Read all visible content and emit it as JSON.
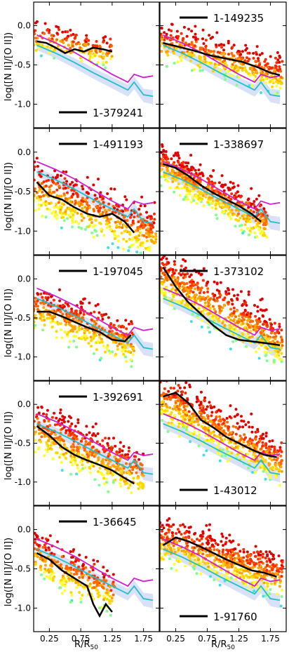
{
  "figure": {
    "ylabel": "log([N II]/[O II])",
    "xlabel": "R/R",
    "xlabel_sub": "50"
  },
  "colors": {
    "magenta_model": "#d020d0",
    "cyan_model": "#20c0c8",
    "band_fill": "#b8c8f0",
    "median_line": "#000000",
    "points": [
      "#e00000",
      "#ff2a00",
      "#ff6a00",
      "#ffa500",
      "#ffd700",
      "#ffff30",
      "#80ff90",
      "#40e0e0"
    ]
  },
  "chart_data": [
    {
      "type": "scatter",
      "label": "1-379241",
      "legend_pos": "bottom",
      "xlim": [
        0,
        2.0
      ],
      "ylim": [
        -1.3,
        0.3
      ],
      "yticks": [
        0.0,
        -0.5,
        -1.0
      ],
      "xticks": [
        0.25,
        0.75,
        1.25,
        1.75
      ],
      "median_x": [
        0.05,
        0.2,
        0.35,
        0.5,
        0.65,
        0.8,
        0.95,
        1.1,
        1.25
      ],
      "median_y": [
        -0.2,
        -0.22,
        -0.28,
        -0.35,
        -0.3,
        -0.33,
        -0.28,
        -0.3,
        -0.33
      ],
      "cloud": {
        "n": 180,
        "x0": 0.0,
        "x1": 1.25,
        "y0": -0.15,
        "slope": -0.15,
        "spread": 0.12
      }
    },
    {
      "type": "scatter",
      "label": "1-149235",
      "legend_pos": "top",
      "xlim": [
        0,
        2.0
      ],
      "ylim": [
        -1.3,
        0.3
      ],
      "yticks": [
        0.0,
        -0.5,
        -1.0
      ],
      "xticks": [
        0.25,
        0.75,
        1.25,
        1.75
      ],
      "median_x": [
        0.05,
        0.3,
        0.55,
        0.8,
        1.05,
        1.3,
        1.55,
        1.75,
        1.9
      ],
      "median_y": [
        -0.22,
        -0.27,
        -0.32,
        -0.38,
        -0.42,
        -0.46,
        -0.53,
        -0.6,
        -0.63
      ],
      "cloud": {
        "n": 420,
        "x0": 0.0,
        "x1": 1.95,
        "y0": -0.2,
        "slope": -0.22,
        "spread": 0.15
      }
    },
    {
      "type": "scatter",
      "label": "1-491193",
      "legend_pos": "top",
      "xlim": [
        0,
        2.0
      ],
      "ylim": [
        -1.3,
        0.3
      ],
      "yticks": [
        0.0,
        -0.5,
        -1.0
      ],
      "xticks": [
        0.25,
        0.75,
        1.25,
        1.75
      ],
      "median_x": [
        0.05,
        0.25,
        0.45,
        0.65,
        0.85,
        1.05,
        1.25,
        1.45,
        1.6
      ],
      "median_y": [
        -0.38,
        -0.55,
        -0.6,
        -0.7,
        -0.78,
        -0.82,
        -0.78,
        -0.88,
        -1.02
      ],
      "cloud": {
        "n": 520,
        "x0": 0.0,
        "x1": 1.95,
        "y0": -0.45,
        "slope": -0.3,
        "spread": 0.2
      }
    },
    {
      "type": "scatter",
      "label": "1-338697",
      "legend_pos": "top",
      "xlim": [
        0,
        2.0
      ],
      "ylim": [
        -1.3,
        0.3
      ],
      "yticks": [
        0.0,
        -0.5,
        -1.0
      ],
      "xticks": [
        0.25,
        0.75,
        1.25,
        1.75
      ],
      "median_x": [
        0.05,
        0.25,
        0.45,
        0.65,
        0.85,
        1.05,
        1.25,
        1.45,
        1.6
      ],
      "median_y": [
        -0.15,
        -0.2,
        -0.3,
        -0.42,
        -0.52,
        -0.6,
        -0.68,
        -0.78,
        -0.88
      ],
      "cloud": {
        "n": 560,
        "x0": 0.0,
        "x1": 1.7,
        "y0": -0.15,
        "slope": -0.45,
        "spread": 0.15
      }
    },
    {
      "type": "scatter",
      "label": "1-197045",
      "legend_pos": "top",
      "xlim": [
        0,
        2.0
      ],
      "ylim": [
        -1.3,
        0.3
      ],
      "yticks": [
        0.0,
        -0.5,
        -1.0
      ],
      "xticks": [
        0.25,
        0.75,
        1.25,
        1.75
      ],
      "median_x": [
        0.05,
        0.25,
        0.45,
        0.65,
        0.85,
        1.05,
        1.25,
        1.45,
        1.55
      ],
      "median_y": [
        -0.42,
        -0.42,
        -0.48,
        -0.55,
        -0.62,
        -0.68,
        -0.78,
        -0.8,
        -0.72
      ],
      "cloud": {
        "n": 400,
        "x0": 0.0,
        "x1": 1.6,
        "y0": -0.35,
        "slope": -0.3,
        "spread": 0.18
      }
    },
    {
      "type": "scatter",
      "label": "1-373102",
      "legend_pos": "top",
      "xlim": [
        0,
        2.0
      ],
      "ylim": [
        -1.3,
        0.3
      ],
      "yticks": [
        0.0,
        -0.5,
        -1.0
      ],
      "xticks": [
        0.25,
        0.75,
        1.25,
        1.75
      ],
      "median_x": [
        0.05,
        0.25,
        0.45,
        0.65,
        0.85,
        1.05,
        1.25,
        1.45,
        1.65,
        1.9
      ],
      "median_y": [
        0.15,
        -0.1,
        -0.3,
        -0.45,
        -0.6,
        -0.72,
        -0.78,
        -0.8,
        -0.82,
        -0.85
      ],
      "cloud": {
        "n": 620,
        "x0": 0.0,
        "x1": 1.95,
        "y0": 0.05,
        "slope": -0.45,
        "spread": 0.2
      }
    },
    {
      "type": "scatter",
      "label": "1-392691",
      "legend_pos": "top",
      "xlim": [
        0,
        2.0
      ],
      "ylim": [
        -1.3,
        0.3
      ],
      "yticks": [
        0.0,
        -0.5,
        -1.0
      ],
      "xticks": [
        0.25,
        0.75,
        1.25,
        1.75
      ],
      "median_x": [
        0.05,
        0.25,
        0.45,
        0.65,
        0.85,
        1.05,
        1.25,
        1.45,
        1.6
      ],
      "median_y": [
        -0.28,
        -0.4,
        -0.55,
        -0.65,
        -0.72,
        -0.78,
        -0.85,
        -0.95,
        -1.02
      ],
      "cloud": {
        "n": 480,
        "x0": 0.0,
        "x1": 1.75,
        "y0": -0.3,
        "slope": -0.35,
        "spread": 0.2
      }
    },
    {
      "type": "scatter",
      "label": "1-43012",
      "legend_pos": "bottom",
      "xlim": [
        0,
        2.0
      ],
      "ylim": [
        -1.3,
        0.3
      ],
      "yticks": [
        0.0,
        -0.5,
        -1.0
      ],
      "xticks": [
        0.25,
        0.75,
        1.25,
        1.75
      ],
      "median_x": [
        0.05,
        0.25,
        0.45,
        0.65,
        0.85,
        1.05,
        1.25,
        1.45,
        1.65,
        1.85
      ],
      "median_y": [
        0.1,
        0.15,
        0.02,
        -0.2,
        -0.3,
        -0.42,
        -0.5,
        -0.58,
        -0.65,
        -0.68
      ],
      "cloud": {
        "n": 640,
        "x0": 0.0,
        "x1": 1.95,
        "y0": 0.1,
        "slope": -0.45,
        "spread": 0.2
      }
    },
    {
      "type": "scatter",
      "label": "1-36645",
      "legend_pos": "top",
      "xlim": [
        0,
        2.0
      ],
      "ylim": [
        -1.3,
        0.3
      ],
      "yticks": [
        0.0,
        -0.5,
        -1.0
      ],
      "xticks": [
        0.25,
        0.75,
        1.25,
        1.75
      ],
      "median_x": [
        0.05,
        0.25,
        0.45,
        0.65,
        0.85,
        0.95,
        1.05,
        1.15,
        1.25
      ],
      "median_y": [
        -0.3,
        -0.38,
        -0.52,
        -0.62,
        -0.72,
        -0.95,
        -1.1,
        -0.95,
        -1.05
      ],
      "cloud": {
        "n": 300,
        "x0": 0.0,
        "x1": 1.3,
        "y0": -0.3,
        "slope": -0.4,
        "spread": 0.2
      }
    },
    {
      "type": "scatter",
      "label": "1-91760",
      "legend_pos": "bottom",
      "xlim": [
        0,
        2.0
      ],
      "ylim": [
        -1.3,
        0.3
      ],
      "yticks": [
        0.0,
        -0.5,
        -1.0
      ],
      "xticks": [
        0.25,
        0.75,
        1.25,
        1.75
      ],
      "median_x": [
        0.05,
        0.25,
        0.45,
        0.65,
        0.85,
        1.05,
        1.25,
        1.45,
        1.65,
        1.85
      ],
      "median_y": [
        -0.2,
        -0.1,
        -0.15,
        -0.22,
        -0.3,
        -0.38,
        -0.45,
        -0.52,
        -0.55,
        -0.6
      ],
      "cloud": {
        "n": 620,
        "x0": 0.0,
        "x1": 1.95,
        "y0": -0.12,
        "slope": -0.25,
        "spread": 0.18
      }
    }
  ],
  "models": {
    "magenta_x": [
      0.05,
      0.35,
      0.65,
      0.95,
      1.25,
      1.5,
      1.6,
      1.75,
      1.9
    ],
    "magenta_y": [
      -0.12,
      -0.22,
      -0.34,
      -0.48,
      -0.62,
      -0.72,
      -0.62,
      -0.66,
      -0.64
    ],
    "cyan_x": [
      0.05,
      0.35,
      0.65,
      0.95,
      1.25,
      1.5,
      1.6,
      1.75,
      1.9
    ],
    "cyan_y": [
      -0.25,
      -0.35,
      -0.47,
      -0.6,
      -0.72,
      -0.82,
      -0.72,
      -0.88,
      -0.9
    ]
  }
}
